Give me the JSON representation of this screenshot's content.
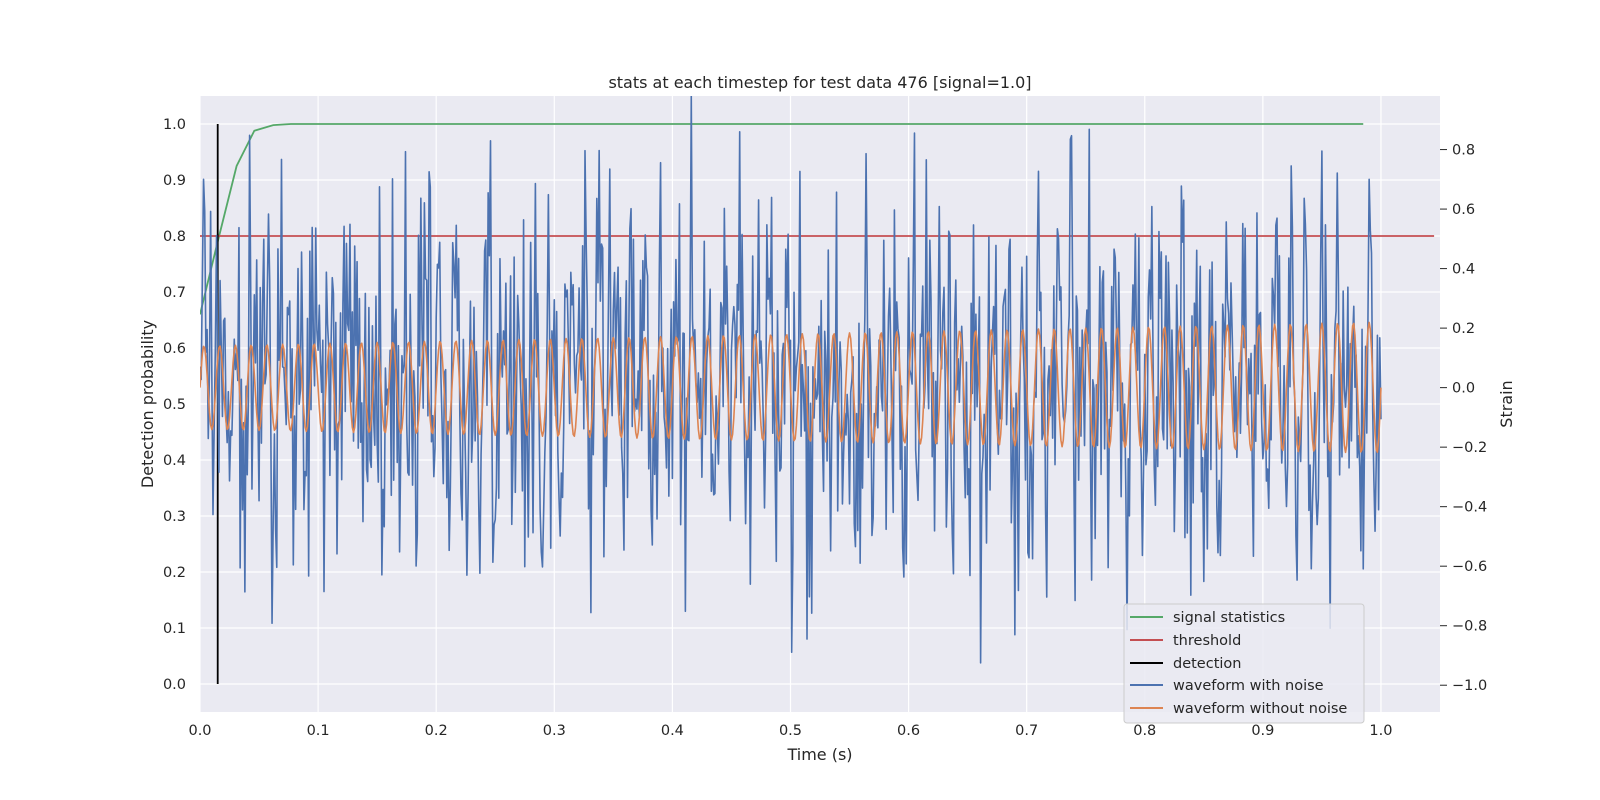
{
  "chart_data": {
    "type": "line",
    "title": "stats at each timestep for test data 476 [signal=1.0]",
    "xlabel": "Time (s)",
    "ylabel_left": "Detection probability",
    "ylabel_right": "Strain",
    "xlim": [
      0.0,
      1.05
    ],
    "ylim_left": [
      -0.05,
      1.05
    ],
    "ylim_right": [
      -1.09,
      0.98
    ],
    "x_ticks": [
      "0.0",
      "0.1",
      "0.2",
      "0.3",
      "0.4",
      "0.5",
      "0.6",
      "0.7",
      "0.8",
      "0.9",
      "1.0"
    ],
    "y_left_ticks": [
      "0.0",
      "0.1",
      "0.2",
      "0.3",
      "0.4",
      "0.5",
      "0.6",
      "0.7",
      "0.8",
      "0.9",
      "1.0"
    ],
    "y_right_ticks": [
      "−1.0",
      "−0.8",
      "−0.6",
      "−0.4",
      "−0.2",
      "0.0",
      "0.2",
      "0.4",
      "0.6",
      "0.8"
    ],
    "grid": true,
    "background": "#eaeaf2",
    "legend_position": "bottom-right",
    "series": [
      {
        "name": "signal statistics",
        "color": "#55a868",
        "axis": "left",
        "x": [
          0.0,
          0.015,
          0.031,
          0.046,
          0.062,
          0.077,
          0.092,
          0.2,
          0.4,
          0.6,
          0.8,
          0.985
        ],
        "y": [
          0.66,
          0.79,
          0.925,
          0.988,
          0.998,
          1.0,
          1.0,
          1.0,
          1.0,
          1.0,
          1.0,
          1.0
        ]
      },
      {
        "name": "threshold",
        "color": "#c44e52",
        "axis": "left",
        "x": [
          0.0,
          1.045
        ],
        "y": [
          0.8,
          0.8
        ]
      },
      {
        "name": "detection",
        "color": "#000000",
        "axis": "left",
        "x": [
          0.015,
          0.015
        ],
        "y": [
          0.0,
          1.0
        ]
      },
      {
        "name": "waveform with noise",
        "color": "#4c72b0",
        "axis": "right",
        "sample_count": 1001,
        "x_range": [
          0.0,
          1.0
        ],
        "y_range": [
          -1.0,
          0.98
        ]
      },
      {
        "name": "waveform without noise",
        "color": "#dd8452",
        "axis": "right",
        "sample_count": 1001,
        "x_range": [
          0.0,
          1.0
        ],
        "amplitude_start": 0.14,
        "amplitude_end": 0.22,
        "cycles": 75
      }
    ]
  }
}
